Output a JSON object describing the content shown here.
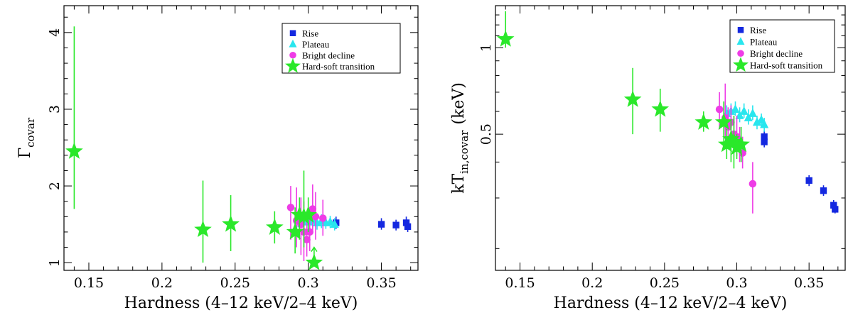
{
  "chart_data": [
    {
      "type": "scatter",
      "panel": "left",
      "xlabel": "Hardness (4–12 keV/2–4 keV)",
      "ylabel_main": "Γ",
      "ylabel_sub": "covar",
      "xlim": [
        0.133,
        0.375
      ],
      "ylim": [
        0.9,
        4.35
      ],
      "xticks": [
        {
          "value": 0.15,
          "label": "0.15"
        },
        {
          "value": 0.2,
          "label": "0.2"
        },
        {
          "value": 0.25,
          "label": "0.25"
        },
        {
          "value": 0.3,
          "label": "0.3"
        },
        {
          "value": 0.35,
          "label": "0.35"
        }
      ],
      "yticks": [
        {
          "value": 1,
          "label": "1"
        },
        {
          "value": 2,
          "label": "2"
        },
        {
          "value": 3,
          "label": "3"
        },
        {
          "value": 4,
          "label": "4"
        }
      ],
      "legend_position": "top-right",
      "series": [
        {
          "name": "Rise",
          "marker": "square",
          "color": "#1428e0",
          "points": [
            {
              "x": 0.319,
              "y": 1.52,
              "lo": 1.44,
              "hi": 1.6
            },
            {
              "x": 0.35,
              "y": 1.5,
              "lo": 1.43,
              "hi": 1.58
            },
            {
              "x": 0.36,
              "y": 1.49,
              "lo": 1.42,
              "hi": 1.56
            },
            {
              "x": 0.367,
              "y": 1.52,
              "lo": 1.44,
              "hi": 1.6
            },
            {
              "x": 0.368,
              "y": 1.47,
              "lo": 1.4,
              "hi": 1.55
            }
          ]
        },
        {
          "name": "Plateau",
          "marker": "triangle",
          "color": "#28e6ee",
          "points": [
            {
              "x": 0.293,
              "y": 1.55,
              "lo": 1.46,
              "hi": 1.64
            },
            {
              "x": 0.297,
              "y": 1.54,
              "lo": 1.45,
              "hi": 1.63
            },
            {
              "x": 0.3,
              "y": 1.53,
              "lo": 1.44,
              "hi": 1.62
            },
            {
              "x": 0.303,
              "y": 1.55,
              "lo": 1.46,
              "hi": 1.64
            },
            {
              "x": 0.306,
              "y": 1.52,
              "lo": 1.43,
              "hi": 1.61
            },
            {
              "x": 0.309,
              "y": 1.54,
              "lo": 1.45,
              "hi": 1.63
            },
            {
              "x": 0.312,
              "y": 1.52,
              "lo": 1.44,
              "hi": 1.6
            },
            {
              "x": 0.315,
              "y": 1.53,
              "lo": 1.45,
              "hi": 1.61
            },
            {
              "x": 0.318,
              "y": 1.5,
              "lo": 1.42,
              "hi": 1.58
            }
          ]
        },
        {
          "name": "Bright decline",
          "marker": "circle",
          "color": "#ee3ce6",
          "points": [
            {
              "x": 0.288,
              "y": 1.72,
              "lo": 1.3,
              "hi": 2.0
            },
            {
              "x": 0.292,
              "y": 1.55,
              "lo": 1.2,
              "hi": 1.98
            },
            {
              "x": 0.295,
              "y": 1.5,
              "lo": 1.1,
              "hi": 1.85
            },
            {
              "x": 0.297,
              "y": 1.4,
              "lo": 1.02,
              "hi": 1.8
            },
            {
              "x": 0.299,
              "y": 1.3,
              "lo": 1.08,
              "hi": 1.6
            },
            {
              "x": 0.301,
              "y": 1.4,
              "lo": 1.15,
              "hi": 1.7
            },
            {
              "x": 0.303,
              "y": 1.7,
              "lo": 1.4,
              "hi": 2.02
            },
            {
              "x": 0.305,
              "y": 1.6,
              "lo": 1.3,
              "hi": 1.92
            },
            {
              "x": 0.31,
              "y": 1.58,
              "lo": 1.35,
              "hi": 1.82
            }
          ]
        },
        {
          "name": "Hard-soft transition",
          "marker": "star",
          "color": "#2ae82a",
          "points": [
            {
              "x": 0.14,
              "y": 2.45,
              "lo": 1.7,
              "hi": 4.08
            },
            {
              "x": 0.228,
              "y": 1.43,
              "lo": 1.0,
              "hi": 2.07
            },
            {
              "x": 0.247,
              "y": 1.5,
              "lo": 1.15,
              "hi": 1.88
            },
            {
              "x": 0.277,
              "y": 1.46,
              "lo": 1.25,
              "hi": 1.67
            },
            {
              "x": 0.291,
              "y": 1.4,
              "lo": 1.12,
              "hi": 1.72
            },
            {
              "x": 0.294,
              "y": 1.62,
              "lo": 1.3,
              "hi": 1.85
            },
            {
              "x": 0.297,
              "y": 1.6,
              "lo": 1.2,
              "hi": 2.2
            },
            {
              "x": 0.3,
              "y": 1.62,
              "lo": 1.4,
              "hi": 1.85
            }
          ],
          "lower_limits": [
            {
              "x": 0.304,
              "y": 1.0,
              "to": 1.2
            }
          ]
        }
      ]
    },
    {
      "type": "scatter",
      "panel": "right",
      "xlabel": "Hardness (4–12 keV/2–4 keV)",
      "ylabel_main": "kT",
      "ylabel_sub": "in,covar",
      "ylabel_tail": "(keV)",
      "xlim": [
        0.133,
        0.375
      ],
      "ylim": [
        0.168,
        1.4
      ],
      "yscale": "log",
      "xticks": [
        {
          "value": 0.15,
          "label": "0.15"
        },
        {
          "value": 0.2,
          "label": "0.2"
        },
        {
          "value": 0.25,
          "label": "0.25"
        },
        {
          "value": 0.3,
          "label": "0.3"
        },
        {
          "value": 0.35,
          "label": "0.35"
        }
      ],
      "yticks": [
        {
          "value": 0.5,
          "label": "0.5"
        },
        {
          "value": 1,
          "label": "1"
        }
      ],
      "legend_position": "top-right",
      "series": [
        {
          "name": "Rise",
          "marker": "square",
          "color": "#1428e0",
          "points": [
            {
              "x": 0.319,
              "y": 0.49,
              "lo": 0.47,
              "hi": 0.515
            },
            {
              "x": 0.319,
              "y": 0.47,
              "lo": 0.45,
              "hi": 0.49
            },
            {
              "x": 0.35,
              "y": 0.345,
              "lo": 0.33,
              "hi": 0.36
            },
            {
              "x": 0.36,
              "y": 0.318,
              "lo": 0.305,
              "hi": 0.332
            },
            {
              "x": 0.367,
              "y": 0.283,
              "lo": 0.272,
              "hi": 0.295
            },
            {
              "x": 0.368,
              "y": 0.274,
              "lo": 0.265,
              "hi": 0.285
            }
          ]
        },
        {
          "name": "Plateau",
          "marker": "triangle",
          "color": "#28e6ee",
          "points": [
            {
              "x": 0.293,
              "y": 0.59,
              "lo": 0.56,
              "hi": 0.63
            },
            {
              "x": 0.296,
              "y": 0.6,
              "lo": 0.57,
              "hi": 0.64
            },
            {
              "x": 0.299,
              "y": 0.61,
              "lo": 0.58,
              "hi": 0.65
            },
            {
              "x": 0.302,
              "y": 0.58,
              "lo": 0.55,
              "hi": 0.62
            },
            {
              "x": 0.305,
              "y": 0.6,
              "lo": 0.57,
              "hi": 0.64
            },
            {
              "x": 0.308,
              "y": 0.57,
              "lo": 0.54,
              "hi": 0.61
            },
            {
              "x": 0.311,
              "y": 0.59,
              "lo": 0.56,
              "hi": 0.63
            },
            {
              "x": 0.314,
              "y": 0.55,
              "lo": 0.52,
              "hi": 0.58
            },
            {
              "x": 0.317,
              "y": 0.56,
              "lo": 0.53,
              "hi": 0.59
            },
            {
              "x": 0.319,
              "y": 0.54,
              "lo": 0.51,
              "hi": 0.57
            }
          ]
        },
        {
          "name": "Bright decline",
          "marker": "circle",
          "color": "#ee3ce6",
          "points": [
            {
              "x": 0.288,
              "y": 0.61,
              "lo": 0.52,
              "hi": 0.7
            },
            {
              "x": 0.292,
              "y": 0.57,
              "lo": 0.48,
              "hi": 0.75
            },
            {
              "x": 0.294,
              "y": 0.53,
              "lo": 0.45,
              "hi": 0.62
            },
            {
              "x": 0.296,
              "y": 0.55,
              "lo": 0.46,
              "hi": 0.63
            },
            {
              "x": 0.298,
              "y": 0.5,
              "lo": 0.43,
              "hi": 0.58
            },
            {
              "x": 0.3,
              "y": 0.49,
              "lo": 0.42,
              "hi": 0.58
            },
            {
              "x": 0.302,
              "y": 0.46,
              "lo": 0.4,
              "hi": 0.53
            },
            {
              "x": 0.304,
              "y": 0.43,
              "lo": 0.38,
              "hi": 0.49
            },
            {
              "x": 0.311,
              "y": 0.336,
              "lo": 0.265,
              "hi": 0.4
            }
          ]
        },
        {
          "name": "Hard-soft transition",
          "marker": "star",
          "color": "#2ae82a",
          "points": [
            {
              "x": 0.14,
              "y": 1.07,
              "lo": 1.0,
              "hi": 1.34
            },
            {
              "x": 0.228,
              "y": 0.66,
              "lo": 0.5,
              "hi": 0.85
            },
            {
              "x": 0.247,
              "y": 0.61,
              "lo": 0.51,
              "hi": 0.72
            },
            {
              "x": 0.277,
              "y": 0.55,
              "lo": 0.51,
              "hi": 0.6
            },
            {
              "x": 0.291,
              "y": 0.55,
              "lo": 0.46,
              "hi": 0.65
            },
            {
              "x": 0.293,
              "y": 0.46,
              "lo": 0.41,
              "hi": 0.52
            },
            {
              "x": 0.296,
              "y": 0.48,
              "lo": 0.4,
              "hi": 0.56
            },
            {
              "x": 0.298,
              "y": 0.47,
              "lo": 0.38,
              "hi": 0.58
            },
            {
              "x": 0.3,
              "y": 0.45,
              "lo": 0.41,
              "hi": 0.5
            },
            {
              "x": 0.303,
              "y": 0.46,
              "lo": 0.4,
              "hi": 0.53
            }
          ]
        }
      ]
    }
  ]
}
